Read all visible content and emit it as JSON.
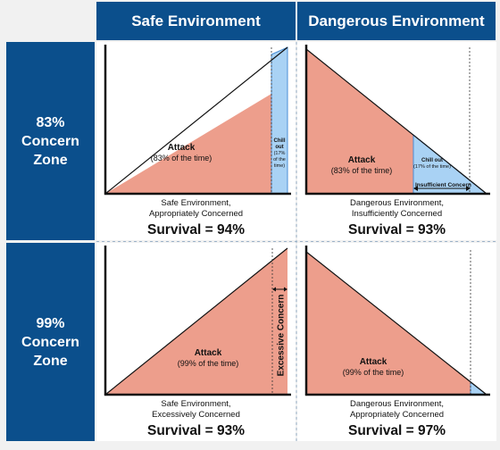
{
  "columns": [
    "Safe Environment",
    "Dangerous Environment"
  ],
  "rows": [
    {
      "line1": "83%",
      "line2": "Concern",
      "line3": "Zone"
    },
    {
      "line1": "99%",
      "line2": "Concern",
      "line3": "Zone"
    }
  ],
  "panels": {
    "safe_83": {
      "attack_title": "Attack",
      "attack_pct": "(83% of the time)",
      "chill_title": "Chill out",
      "chill_pct": "(17% of the time)",
      "caption1": "Safe Environment,",
      "caption2": "Appropriately Concerned",
      "survival": "Survival = 94%"
    },
    "danger_83": {
      "attack_title": "Attack",
      "attack_pct": "(83% of the time)",
      "chill_title": "Chill out",
      "chill_pct": "(17% of the time)",
      "insufficient": "Insufficient Concern",
      "caption1": "Dangerous Environment,",
      "caption2": "Insufficiently Concerned",
      "survival": "Survival = 93%"
    },
    "safe_99": {
      "attack_title": "Attack",
      "attack_pct": "(99% of the time)",
      "excessive": "Excessive Concern",
      "caption1": "Safe Environment,",
      "caption2": "Excessively Concerned",
      "survival": "Survival = 93%"
    },
    "danger_99": {
      "attack_title": "Attack",
      "attack_pct": "(99% of the time)",
      "caption1": "Dangerous Environment,",
      "caption2": "Appropriately Concerned",
      "survival": "Survival = 97%"
    }
  },
  "colors": {
    "header": "#0b4f8c",
    "attack": "#ed9e8c",
    "chill": "#a9d2f4",
    "chill_stroke": "#4a8fd6"
  }
}
